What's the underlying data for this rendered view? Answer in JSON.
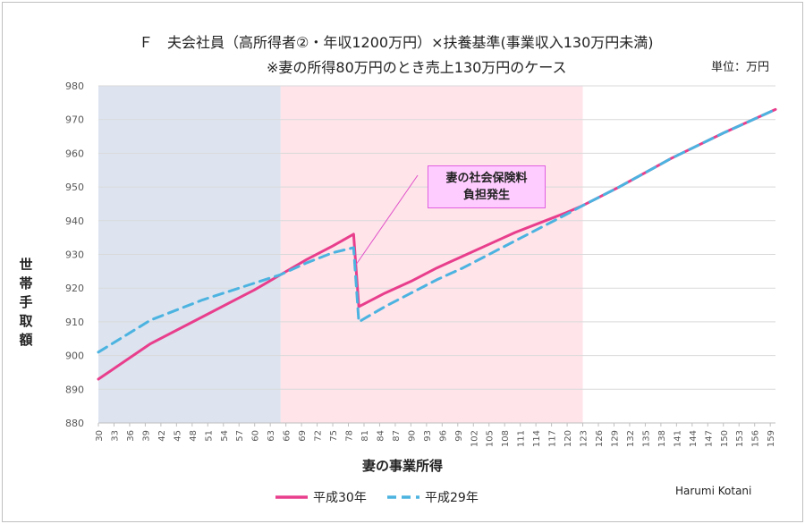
{
  "chart_data": {
    "type": "line",
    "title": "Ｆ　夫会社員（高所得者②・年収1200万円）×扶養基準(事業収入130万円未満)",
    "subtitle": "※妻の所得80万円のとき売上130万円のケース",
    "unit": "単位：万円",
    "xlabel": "妻の事業所得",
    "ylabel": "世帯手取額",
    "ylim": [
      880,
      980
    ],
    "yticks": [
      880,
      890,
      900,
      910,
      920,
      930,
      940,
      950,
      960,
      970,
      980
    ],
    "xlim": [
      30,
      160
    ],
    "xticks": [
      "30",
      "33",
      "36",
      "39",
      "42",
      "45",
      "48",
      "51",
      "54",
      "57",
      "60",
      "63",
      "66",
      "69",
      "72",
      "75",
      "78",
      "81",
      "84",
      "87",
      "90",
      "93",
      "96",
      "99",
      "102",
      "105",
      "108",
      "111",
      "114",
      "117",
      "120",
      "123",
      "126",
      "129",
      "132",
      "135",
      "138",
      "141",
      "144",
      "147",
      "150",
      "153",
      "156",
      "159"
    ],
    "bands": [
      {
        "from": 30,
        "to": 65,
        "color": "#dde4f0"
      },
      {
        "from": 65,
        "to": 123,
        "color": "#ffe4ea"
      }
    ],
    "grid": true,
    "legend_position": "bottom",
    "annotation": "妻の社会保険料\n負担発生",
    "series": [
      {
        "name": "平成30年",
        "color": "#e83e8c",
        "style": "solid",
        "x": [
          30,
          40,
          50,
          60,
          65,
          70,
          75,
          79,
          80,
          85,
          90,
          95,
          100,
          105,
          110,
          115,
          120,
          123,
          130,
          140,
          150,
          160
        ],
        "y": [
          893,
          903.5,
          911.5,
          919.5,
          924,
          928.5,
          932.5,
          936,
          914.5,
          918.5,
          922,
          926,
          929.5,
          933,
          936.5,
          939.5,
          942.5,
          944.5,
          950,
          958.5,
          966,
          973
        ]
      },
      {
        "name": "平成29年",
        "color": "#4cb3e0",
        "style": "dashed",
        "x": [
          30,
          40,
          50,
          60,
          65,
          70,
          75,
          79,
          80,
          85,
          90,
          95,
          100,
          105,
          110,
          115,
          120,
          123,
          130,
          140,
          150,
          160
        ],
        "y": [
          901,
          910.5,
          916.5,
          921.5,
          924,
          927.5,
          930.5,
          932,
          910,
          914.5,
          918.5,
          922.5,
          926,
          930,
          934,
          938,
          942,
          944.5,
          950,
          958.5,
          966,
          973
        ]
      }
    ]
  },
  "credit": "Harumi Kotani"
}
